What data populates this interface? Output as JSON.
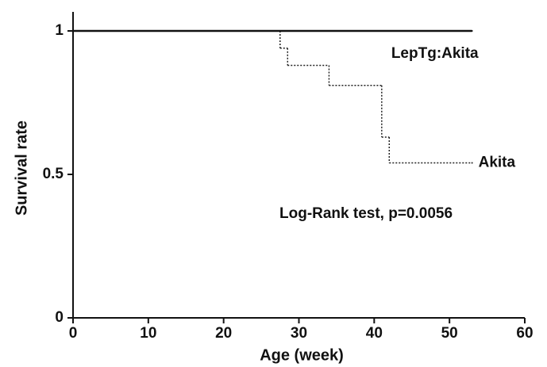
{
  "chart_data": {
    "type": "step",
    "xlabel": "Age (week)",
    "ylabel": "Survival rate",
    "xlim": [
      0,
      60
    ],
    "xticks": [
      0,
      10,
      20,
      30,
      40,
      50,
      60
    ],
    "ylim": [
      0,
      1
    ],
    "yticks": [
      0,
      0.5,
      1
    ],
    "series": [
      {
        "name": "Akita",
        "color": "#222222",
        "dash": "dotted",
        "x": [
          0,
          27.5,
          28.5,
          34,
          41,
          42,
          53
        ],
        "values": [
          1,
          0.94,
          0.88,
          0.81,
          0.63,
          0.54,
          0.54
        ]
      },
      {
        "name": "LepTg:Akita",
        "color": "#111111",
        "dash": "solid",
        "x": [
          0,
          53
        ],
        "values": [
          1,
          1
        ]
      }
    ],
    "annotations": [
      "Log-Rank test, p=0.0056"
    ]
  }
}
